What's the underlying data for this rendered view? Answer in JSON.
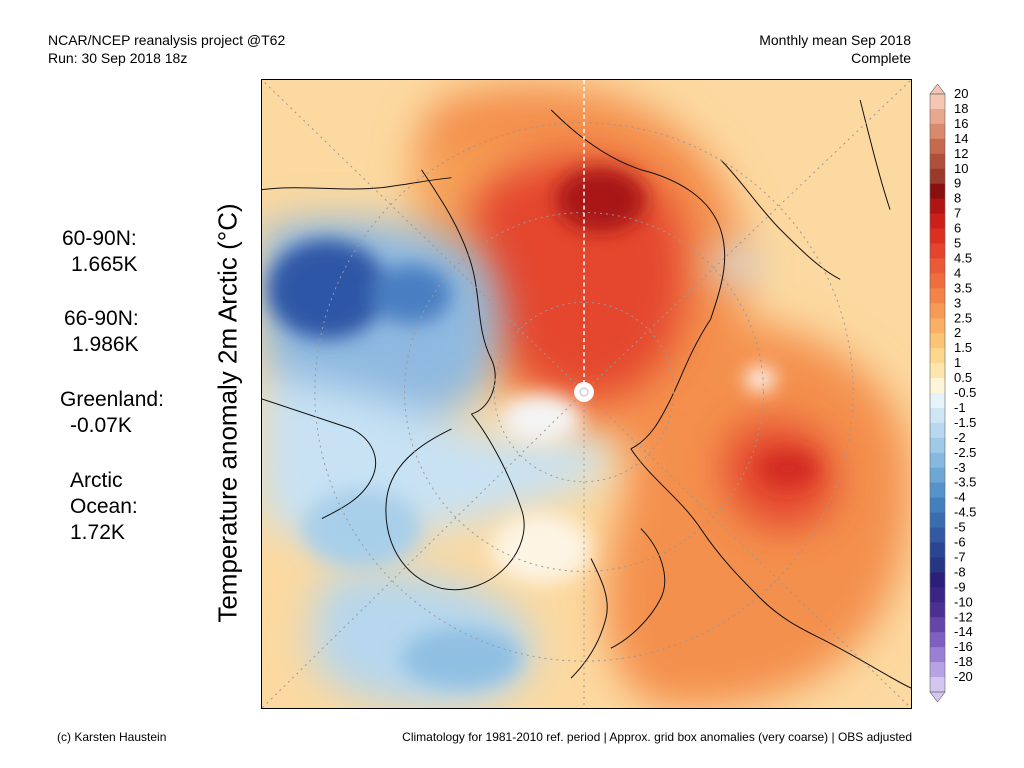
{
  "header": {
    "line1_left": "NCAR/NCEP reanalysis project @T62",
    "line2_left": "Run: 30 Sep 2018 18z",
    "line1_right": "Monthly mean Sep 2018",
    "line2_right": "Complete"
  },
  "ylabel": "Temperature anomaly 2m Arctic (°C)",
  "stats": [
    {
      "label": "60-90N:",
      "value": "1.665K"
    },
    {
      "label": "66-90N:",
      "value": "1.986K"
    },
    {
      "label": "Greenland:",
      "value": "-0.07K"
    },
    {
      "label": "Arctic",
      "label2": "Ocean:",
      "value": "1.72K"
    }
  ],
  "colorbar": {
    "labels": [
      "20",
      "18",
      "16",
      "14",
      "12",
      "10",
      "9",
      "8",
      "7",
      "6",
      "5",
      "4.5",
      "4",
      "3.5",
      "3",
      "2.5",
      "2",
      "1.5",
      "1",
      "0.5",
      "-0.5",
      "-1",
      "-1.5",
      "-2",
      "-2.5",
      "-3",
      "-3.5",
      "-4",
      "-4.5",
      "-5",
      "-6",
      "-7",
      "-8",
      "-9",
      "-10",
      "-12",
      "-14",
      "-16",
      "-18",
      "-20"
    ],
    "colors": [
      "#f4c6b4",
      "#e8a88e",
      "#d9896c",
      "#c56a4c",
      "#b0503a",
      "#9a3a2a",
      "#8a0f0f",
      "#b01414",
      "#cc1f1a",
      "#dc2f22",
      "#e4432d",
      "#eb5a36",
      "#f06d3e",
      "#f4834a",
      "#f79a55",
      "#f9b064",
      "#fbc476",
      "#fcd78e",
      "#fde6ab",
      "#fef4d8",
      "#e7f3fb",
      "#cfe6f5",
      "#b7d8ef",
      "#9ecae8",
      "#86b9e0",
      "#6ea7d6",
      "#5693ca",
      "#447fbd",
      "#3a6cb0",
      "#3259a3",
      "#2a4594",
      "#263584",
      "#2c1f7a",
      "#3b2485",
      "#4b2f95",
      "#6645ab",
      "#7f5fc0",
      "#9a7fd3",
      "#b7a3e3",
      "#d3c6f0"
    ]
  },
  "footer": {
    "left": "(c) Karsten Haustein",
    "right": "Climatology for 1981-2010 ref. period | Approx. grid box anomalies (very coarse) | OBS adjusted"
  }
}
